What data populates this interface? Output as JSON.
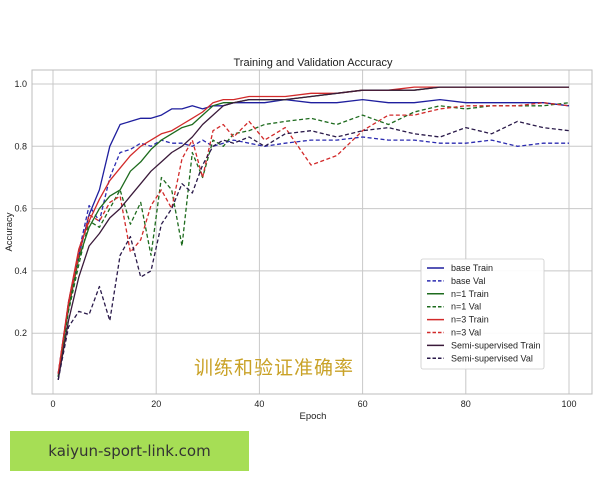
{
  "chart_data": {
    "type": "line",
    "title": "Training and Validation Accuracy",
    "xlabel": "Epoch",
    "ylabel": "Accuracy",
    "xlim": [
      -4,
      104
    ],
    "ylim": [
      0.0,
      1.05
    ],
    "xticks": [
      0,
      20,
      40,
      60,
      80,
      100
    ],
    "yticks": [
      0.2,
      0.4,
      0.6,
      0.8,
      1.0
    ],
    "ytick_labels": [
      "0.2",
      "0.4",
      "0.6",
      "0.8",
      "1.0"
    ],
    "grid": true,
    "legend_position": "lower right",
    "x": [
      1,
      3,
      5,
      7,
      9,
      11,
      13,
      15,
      17,
      19,
      21,
      23,
      25,
      27,
      29,
      31,
      33,
      35,
      38,
      41,
      45,
      50,
      55,
      60,
      65,
      70,
      75,
      80,
      85,
      90,
      95,
      100
    ],
    "series": [
      {
        "name": "base Train",
        "color": "#1f1f9e",
        "dash": false,
        "values": [
          0.06,
          0.28,
          0.45,
          0.58,
          0.66,
          0.8,
          0.87,
          0.88,
          0.89,
          0.89,
          0.9,
          0.92,
          0.92,
          0.93,
          0.92,
          0.93,
          0.93,
          0.94,
          0.94,
          0.94,
          0.95,
          0.94,
          0.94,
          0.95,
          0.94,
          0.94,
          0.95,
          0.94,
          0.94,
          0.94,
          0.94,
          0.93
        ]
      },
      {
        "name": "base Val",
        "color": "#2b2bb0",
        "dash": true,
        "values": [
          0.07,
          0.3,
          0.46,
          0.61,
          0.56,
          0.7,
          0.78,
          0.79,
          0.81,
          0.8,
          0.82,
          0.81,
          0.81,
          0.8,
          0.82,
          0.8,
          0.81,
          0.82,
          0.81,
          0.8,
          0.81,
          0.82,
          0.82,
          0.83,
          0.82,
          0.82,
          0.81,
          0.81,
          0.82,
          0.8,
          0.81,
          0.81
        ]
      },
      {
        "name": "n=1 Train",
        "color": "#1e6b1e",
        "dash": false,
        "values": [
          0.06,
          0.28,
          0.44,
          0.54,
          0.6,
          0.64,
          0.66,
          0.72,
          0.75,
          0.79,
          0.82,
          0.84,
          0.86,
          0.87,
          0.9,
          0.93,
          0.94,
          0.94,
          0.95,
          0.95,
          0.95,
          0.96,
          0.97,
          0.98,
          0.98,
          0.98,
          0.99,
          0.99,
          0.99,
          0.99,
          0.99,
          0.99
        ]
      },
      {
        "name": "n=1 Val",
        "color": "#1e6b1e",
        "dash": true,
        "values": [
          0.06,
          0.27,
          0.42,
          0.56,
          0.54,
          0.6,
          0.66,
          0.55,
          0.62,
          0.45,
          0.7,
          0.66,
          0.48,
          0.78,
          0.7,
          0.82,
          0.8,
          0.84,
          0.85,
          0.87,
          0.88,
          0.89,
          0.87,
          0.9,
          0.87,
          0.91,
          0.93,
          0.92,
          0.93,
          0.93,
          0.93,
          0.94
        ]
      },
      {
        "name": "n=3 Train",
        "color": "#d22a2a",
        "dash": false,
        "values": [
          0.07,
          0.3,
          0.47,
          0.56,
          0.63,
          0.69,
          0.73,
          0.77,
          0.8,
          0.82,
          0.84,
          0.85,
          0.87,
          0.89,
          0.91,
          0.94,
          0.95,
          0.95,
          0.96,
          0.96,
          0.96,
          0.97,
          0.97,
          0.98,
          0.98,
          0.99,
          0.99,
          0.99,
          0.99,
          0.99,
          0.99,
          0.99
        ]
      },
      {
        "name": "n=3 Val",
        "color": "#d22a2a",
        "dash": true,
        "values": [
          0.07,
          0.29,
          0.45,
          0.58,
          0.56,
          0.62,
          0.64,
          0.46,
          0.5,
          0.61,
          0.66,
          0.6,
          0.76,
          0.82,
          0.7,
          0.85,
          0.87,
          0.83,
          0.88,
          0.82,
          0.86,
          0.74,
          0.77,
          0.85,
          0.9,
          0.9,
          0.92,
          0.93,
          0.93,
          0.93,
          0.94,
          0.93
        ]
      },
      {
        "name": "Semi-supervised Train",
        "color": "#3a1a3a",
        "dash": false,
        "values": [
          0.05,
          0.24,
          0.38,
          0.48,
          0.52,
          0.57,
          0.6,
          0.64,
          0.68,
          0.72,
          0.75,
          0.78,
          0.8,
          0.83,
          0.87,
          0.9,
          0.93,
          0.94,
          0.95,
          0.95,
          0.95,
          0.96,
          0.97,
          0.98,
          0.98,
          0.98,
          0.99,
          0.99,
          0.99,
          0.99,
          0.99,
          0.99
        ]
      },
      {
        "name": "Semi-supervised Val",
        "color": "#2a1a4a",
        "dash": true,
        "values": [
          0.05,
          0.22,
          0.27,
          0.26,
          0.35,
          0.24,
          0.45,
          0.51,
          0.38,
          0.4,
          0.55,
          0.6,
          0.68,
          0.65,
          0.74,
          0.8,
          0.82,
          0.81,
          0.83,
          0.8,
          0.84,
          0.85,
          0.83,
          0.85,
          0.86,
          0.84,
          0.83,
          0.86,
          0.84,
          0.88,
          0.86,
          0.85
        ]
      }
    ]
  },
  "overlay": {
    "chinese_caption": "训练和验证准确率"
  },
  "watermark": {
    "text": "kaiyun-sport-link.com"
  }
}
